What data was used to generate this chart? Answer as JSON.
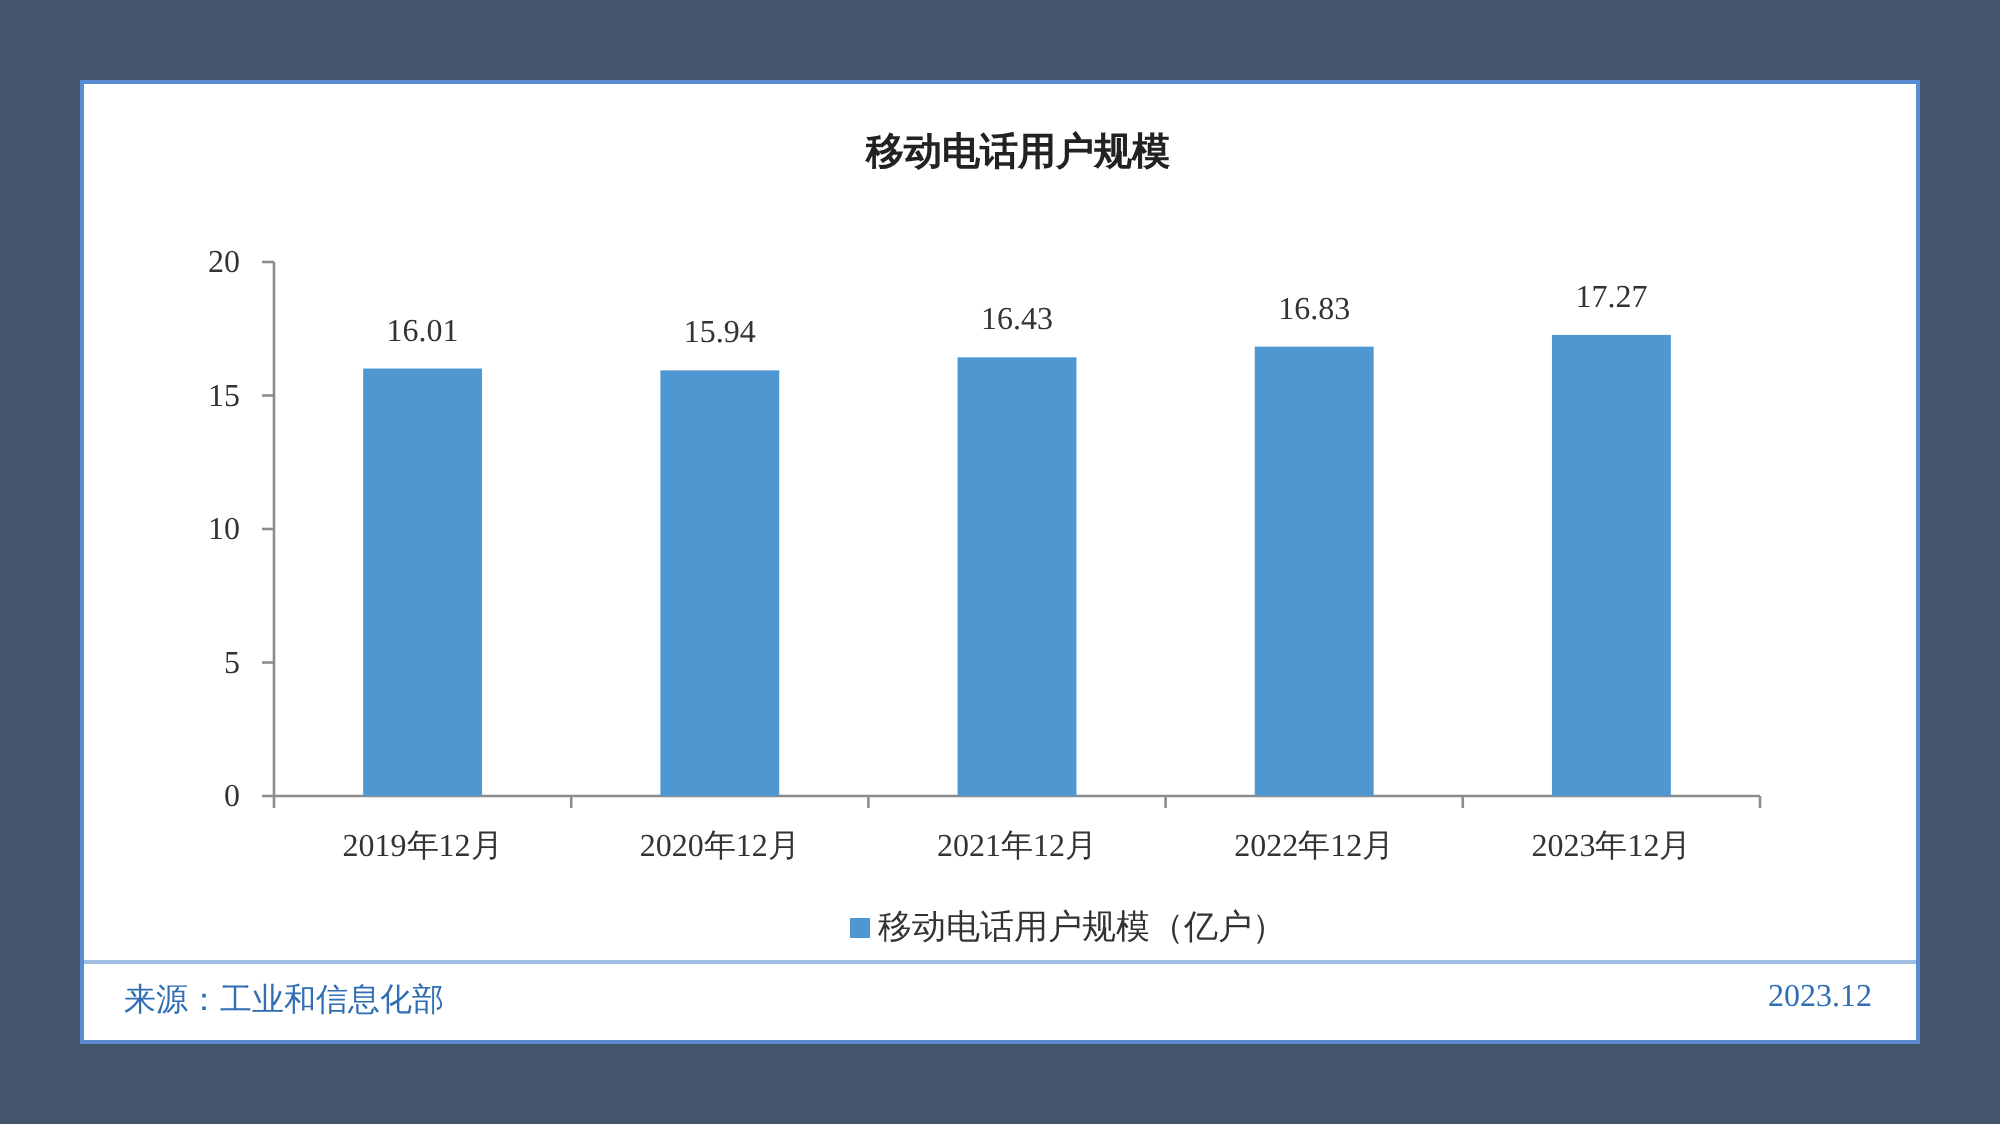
{
  "chart_data": {
    "type": "bar",
    "title": "移动电话用户规模",
    "categories": [
      "2019年12月",
      "2020年12月",
      "2021年12月",
      "2022年12月",
      "2023年12月"
    ],
    "series": [
      {
        "name": "移动电话用户规模（亿户）",
        "color": "#4f97d1",
        "values": [
          16.01,
          15.94,
          16.43,
          16.83,
          17.27
        ]
      }
    ],
    "ylim": [
      0,
      20
    ],
    "yticks": [
      0,
      5,
      10,
      15,
      20
    ],
    "data_labels": true,
    "legend": "bottom",
    "annotations": [
      "来源：工业和信息化部",
      "2023.12"
    ]
  }
}
